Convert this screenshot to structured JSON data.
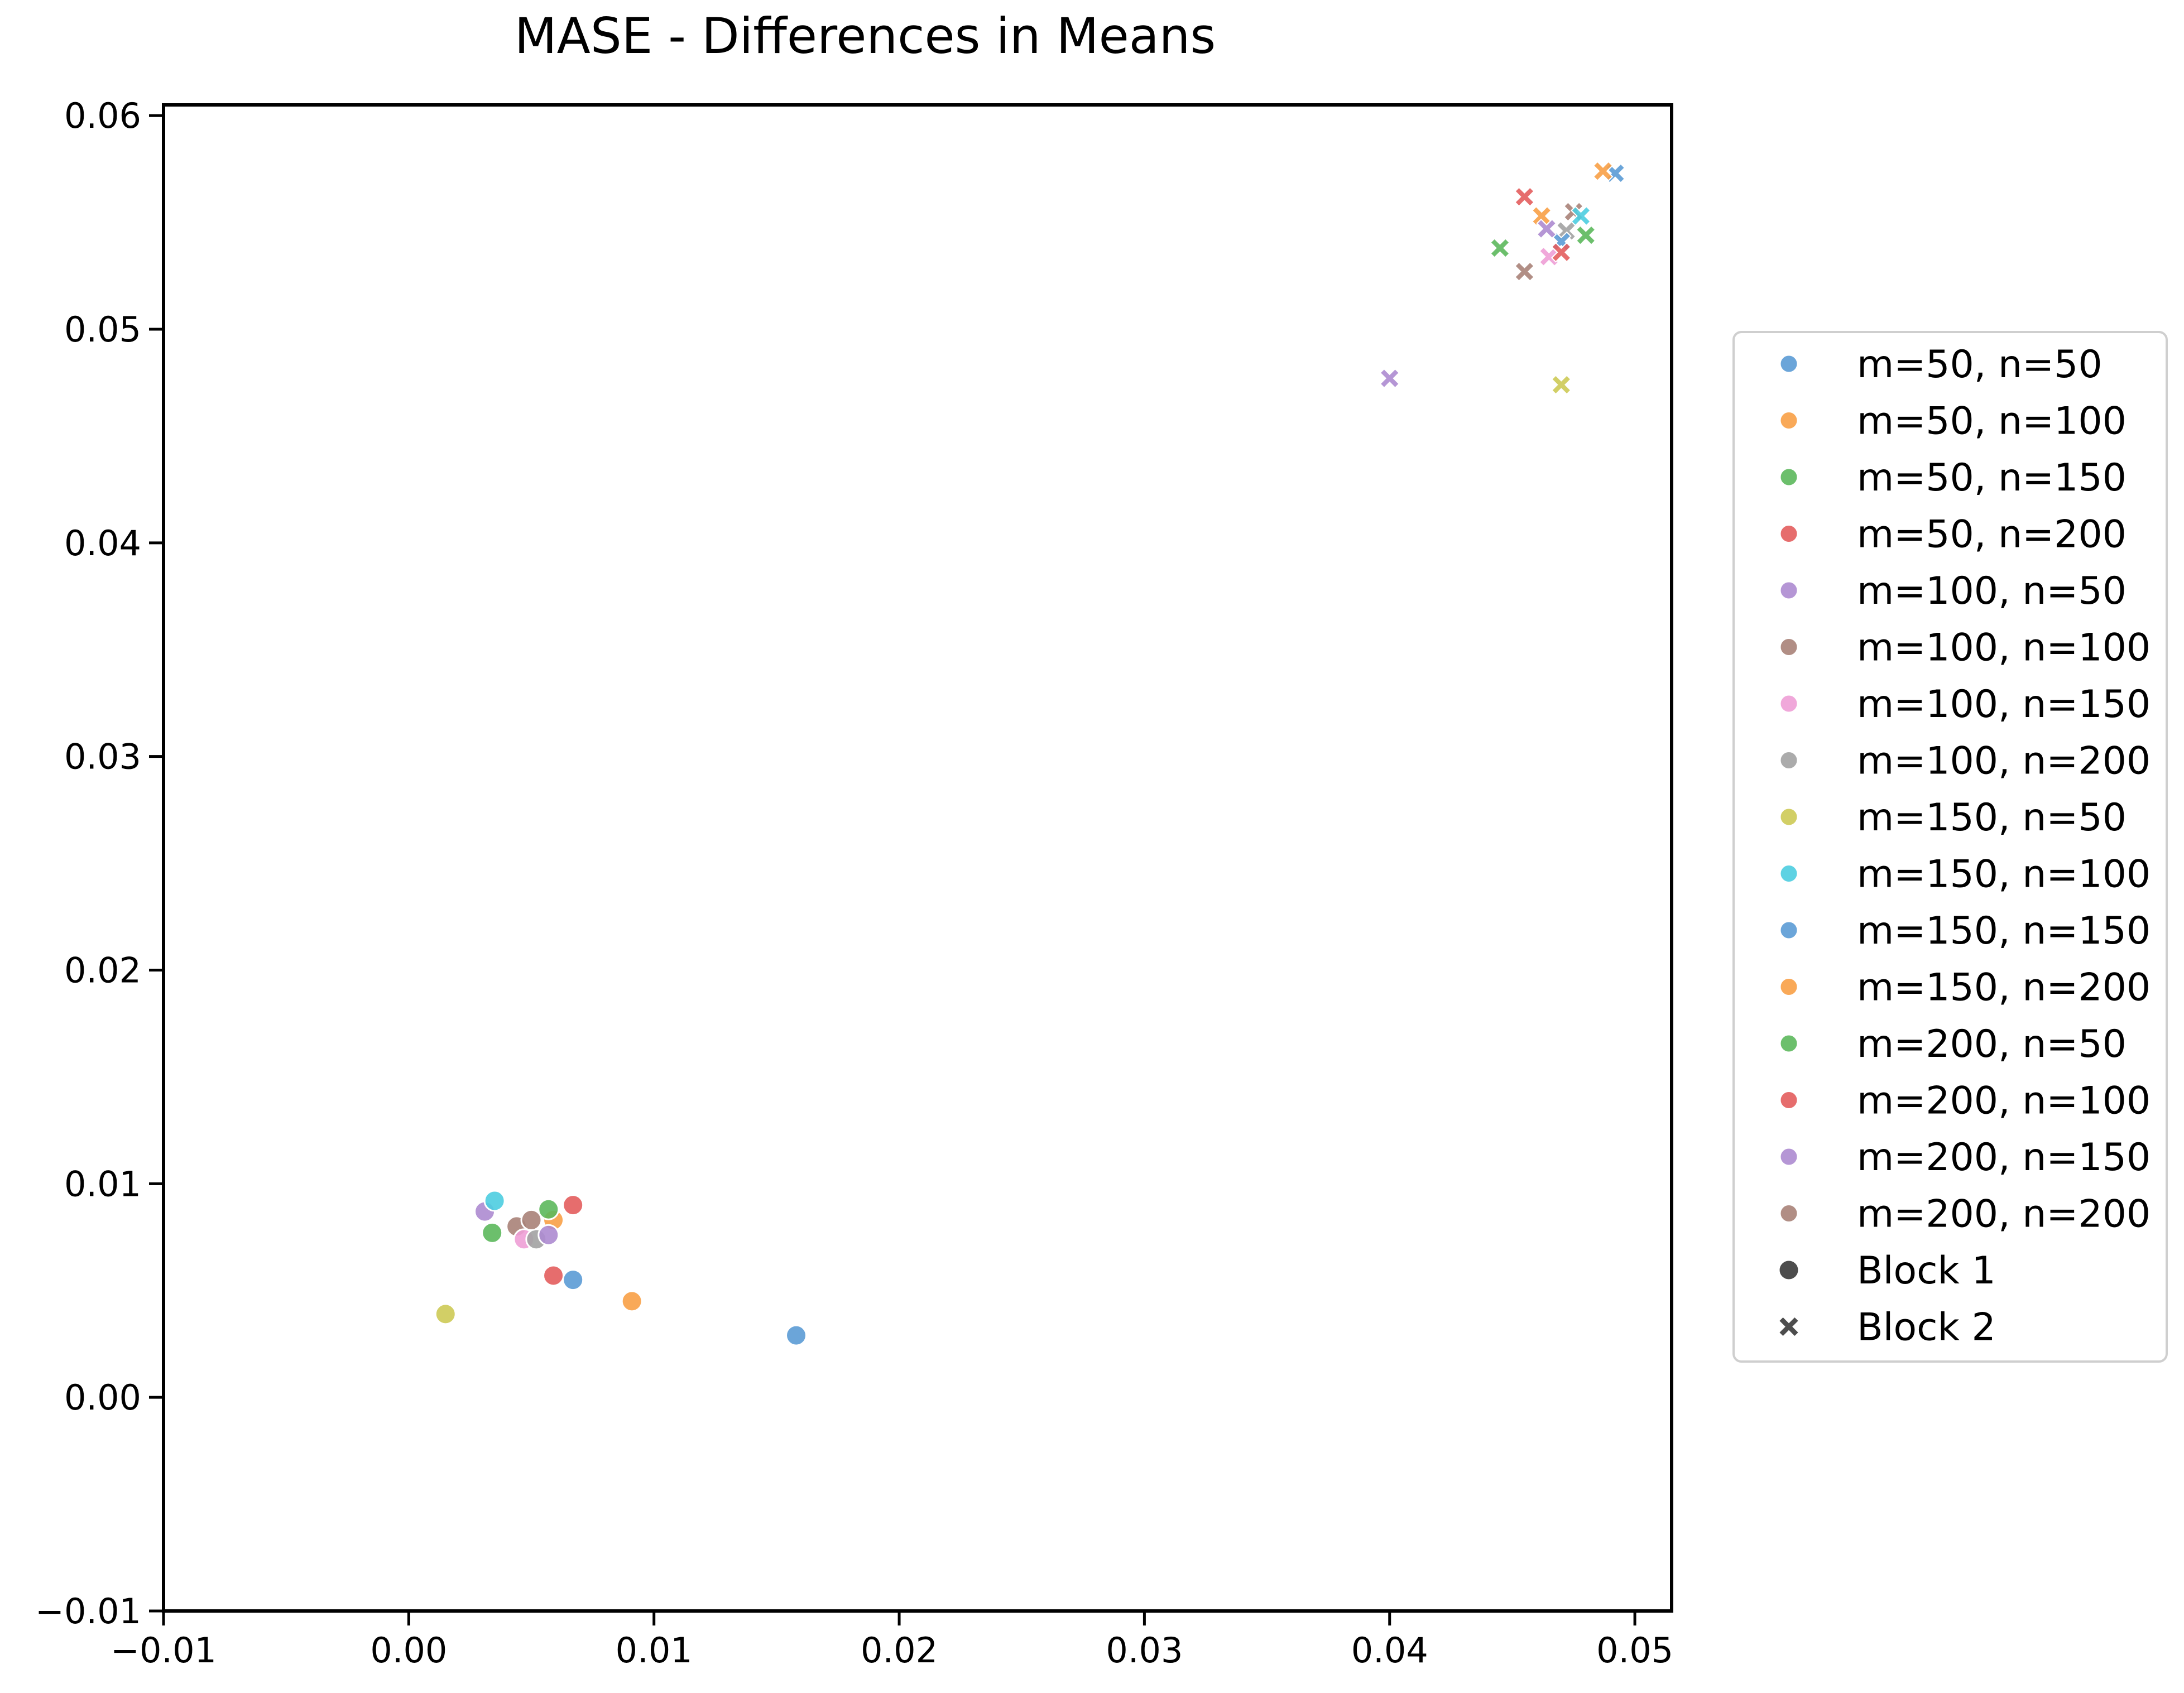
{
  "chart_data": {
    "type": "scatter",
    "title": "MASE - Differences in Means",
    "xlabel": "",
    "ylabel": "",
    "xlim": [
      -0.01,
      0.0515
    ],
    "ylim": [
      -0.01,
      0.0605
    ],
    "x_ticks": [
      "−0.01",
      "0.00",
      "0.01",
      "0.02",
      "0.03",
      "0.04",
      "0.05"
    ],
    "y_ticks": [
      "−0.01",
      "0.00",
      "0.01",
      "0.02",
      "0.03",
      "0.04",
      "0.05",
      "0.06"
    ],
    "grid": false,
    "legend_position": "right",
    "series": [
      {
        "name": "m=50, n=50",
        "color": "#5b9bd5",
        "block1": [
          0.0158,
          0.0029
        ],
        "block2": [
          0.0492,
          0.0573
        ]
      },
      {
        "name": "m=50, n=100",
        "color": "#f8a046",
        "block1": [
          0.0091,
          0.0045
        ],
        "block2": [
          0.0487,
          0.0574
        ]
      },
      {
        "name": "m=50, n=150",
        "color": "#5cb85c",
        "block1": [
          0.0034,
          0.0077
        ],
        "block2": [
          0.048,
          0.0544
        ]
      },
      {
        "name": "m=50, n=200",
        "color": "#e35d5d",
        "block1": [
          0.0067,
          0.009
        ],
        "block2": [
          0.0455,
          0.0562
        ]
      },
      {
        "name": "m=100, n=50",
        "color": "#ad8bd0",
        "block1": [
          0.0031,
          0.0087
        ],
        "block2": [
          0.04,
          0.0477
        ]
      },
      {
        "name": "m=100, n=100",
        "color": "#a98278",
        "block1": [
          0.0044,
          0.008
        ],
        "block2": [
          0.0475,
          0.0555
        ]
      },
      {
        "name": "m=100, n=150",
        "color": "#ee9ed6",
        "block1": [
          0.0047,
          0.0074
        ],
        "block2": [
          0.0465,
          0.0534
        ]
      },
      {
        "name": "m=100, n=200",
        "color": "#a2a2a2",
        "block1": [
          0.0052,
          0.0074
        ],
        "block2": [
          0.0472,
          0.0546
        ]
      },
      {
        "name": "m=150, n=50",
        "color": "#cdca55",
        "block1": [
          0.0015,
          0.0039
        ],
        "block2": [
          0.047,
          0.0474
        ]
      },
      {
        "name": "m=150, n=100",
        "color": "#4dcde0",
        "block1": [
          0.0035,
          0.0092
        ],
        "block2": [
          0.0478,
          0.0553
        ]
      },
      {
        "name": "m=150, n=150",
        "color": "#5b9bd5",
        "block1": [
          0.0067,
          0.0055
        ],
        "block2": [
          0.047,
          0.0541
        ]
      },
      {
        "name": "m=150, n=200",
        "color": "#f8a046",
        "block1": [
          0.0059,
          0.0083
        ],
        "block2": [
          0.0462,
          0.0553
        ]
      },
      {
        "name": "m=200, n=50",
        "color": "#5cb85c",
        "block1": [
          0.0057,
          0.0088
        ],
        "block2": [
          0.0445,
          0.0538
        ]
      },
      {
        "name": "m=200, n=100",
        "color": "#e35d5d",
        "block1": [
          0.0059,
          0.0057
        ],
        "block2": [
          0.047,
          0.0536
        ]
      },
      {
        "name": "m=200, n=150",
        "color": "#ad8bd0",
        "block1": [
          0.0057,
          0.0076
        ],
        "block2": [
          0.0464,
          0.0547
        ]
      },
      {
        "name": "m=200, n=200",
        "color": "#a98278",
        "block1": [
          0.005,
          0.0083
        ],
        "block2": [
          0.0455,
          0.0527
        ]
      }
    ],
    "marker_legend": [
      {
        "name": "Block 1",
        "marker": "circle"
      },
      {
        "name": "Block 2",
        "marker": "x"
      }
    ]
  }
}
